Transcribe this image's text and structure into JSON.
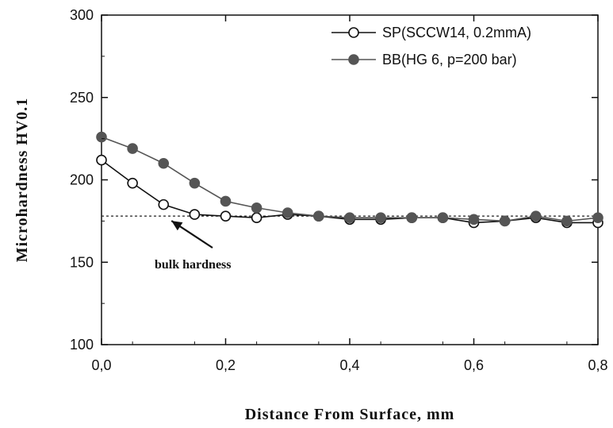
{
  "chart_data": {
    "type": "line",
    "title": "",
    "xlabel": "Distance From Surface, mm",
    "ylabel": "Microhardness HV0.1",
    "xlim": [
      0,
      0.8
    ],
    "ylim": [
      100,
      300
    ],
    "x_ticks": [
      "0,0",
      "0,2",
      "0,4",
      "0,6",
      "0,8"
    ],
    "y_ticks": [
      "100",
      "150",
      "200",
      "250",
      "300"
    ],
    "grid": false,
    "legend_position": "top-right",
    "x": [
      0.0,
      0.05,
      0.1,
      0.15,
      0.2,
      0.25,
      0.3,
      0.35,
      0.4,
      0.45,
      0.5,
      0.55,
      0.6,
      0.65,
      0.7,
      0.75,
      0.8
    ],
    "series": [
      {
        "name": "SP(SCCW14, 0.2mmA)",
        "marker": "open-circle",
        "color": "#111111",
        "values": [
          212,
          198,
          185,
          179,
          178,
          177,
          179,
          178,
          176,
          176,
          177,
          177,
          174,
          175,
          177,
          174,
          174
        ]
      },
      {
        "name": "BB(HG 6, p=200 bar)",
        "marker": "filled-circle",
        "color": "#555555",
        "values": [
          226,
          219,
          210,
          198,
          187,
          183,
          180,
          178,
          177,
          177,
          177,
          177,
          176,
          175,
          178,
          175,
          177
        ]
      }
    ],
    "reference_line": {
      "y": 178,
      "x_range": [
        0.0,
        0.8
      ],
      "style": "dotted"
    },
    "annotations": [
      {
        "text": "bulk hardness",
        "x": 0.1,
        "y": 156,
        "arrow_to": {
          "x": 0.1,
          "y": 179
        }
      }
    ]
  }
}
